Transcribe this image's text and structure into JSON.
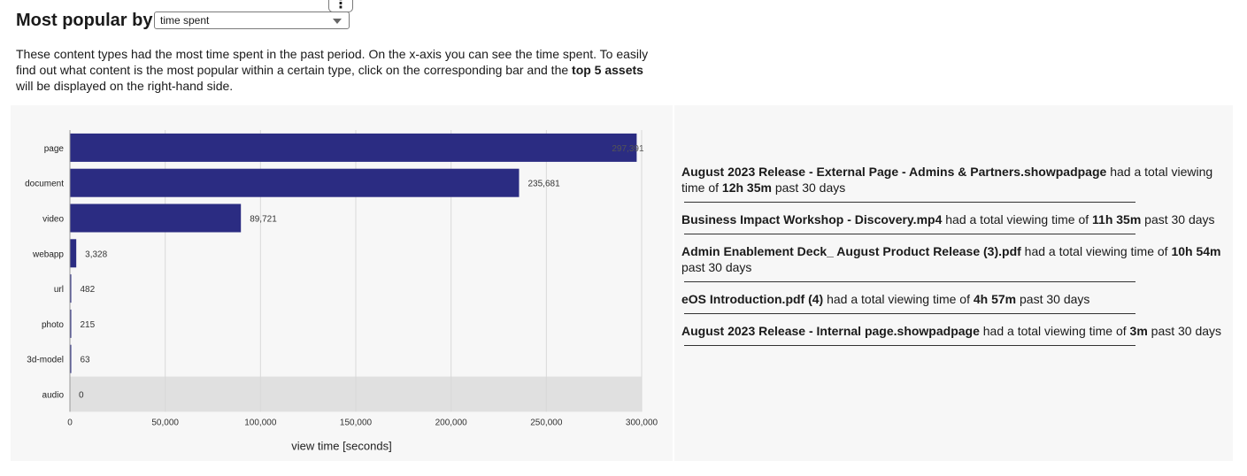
{
  "header": {
    "title": "Most popular by:",
    "select_value": "time spent",
    "menu_icon": "kebab-menu-icon"
  },
  "description": {
    "part1": "These content types had the most time spent in the past period. On the x-axis you can see the time spent. To easily find out what content is the most popular within a certain type, click on the corresponding bar and the ",
    "bold": "top 5 assets",
    "part2": " will be displayed on the right-hand side."
  },
  "chart_data": {
    "type": "bar",
    "orientation": "horizontal",
    "categories": [
      "page",
      "document",
      "video",
      "webapp",
      "url",
      "photo",
      "3d-model",
      "audio"
    ],
    "values": [
      297391,
      235681,
      89721,
      3328,
      482,
      215,
      63,
      0
    ],
    "value_labels": [
      "297,391",
      "235,681",
      "89,721",
      "3,328",
      "482",
      "215",
      "63",
      "0"
    ],
    "xlabel": "view time [seconds]",
    "xlim": [
      0,
      300000
    ],
    "xticks": [
      0,
      50000,
      100000,
      150000,
      200000,
      250000,
      300000
    ],
    "xtick_labels": [
      "0",
      "50,000",
      "100,000",
      "150,000",
      "200,000",
      "250,000",
      "300,000"
    ],
    "grid": true,
    "highlighted_category": "audio",
    "bar_color": "#2b2c82",
    "highlight_color": "#e0e0e0"
  },
  "top_assets": [
    {
      "name": "August 2023 Release - External Page - Admins & Partners.showpadpage",
      "mid": " had a total viewing time of ",
      "time": "12h 35m",
      "suffix": " past 30 days"
    },
    {
      "name": "Business Impact Workshop - Discovery.mp4",
      "mid": " had a total viewing time of ",
      "time": "11h 35m",
      "suffix": " past 30 days"
    },
    {
      "name": "Admin Enablement Deck_ August Product Release (3).pdf",
      "mid": " had a total viewing time of ",
      "time": "10h 54m",
      "suffix": " past 30 days"
    },
    {
      "name": "eOS Introduction.pdf (4)",
      "mid": " had a total viewing time of ",
      "time": "4h 57m",
      "suffix": " past 30 days"
    },
    {
      "name": "August 2023 Release - Internal page.showpadpage",
      "mid": " had a total viewing time of ",
      "time": "3m",
      "suffix": " past 30 days"
    }
  ]
}
